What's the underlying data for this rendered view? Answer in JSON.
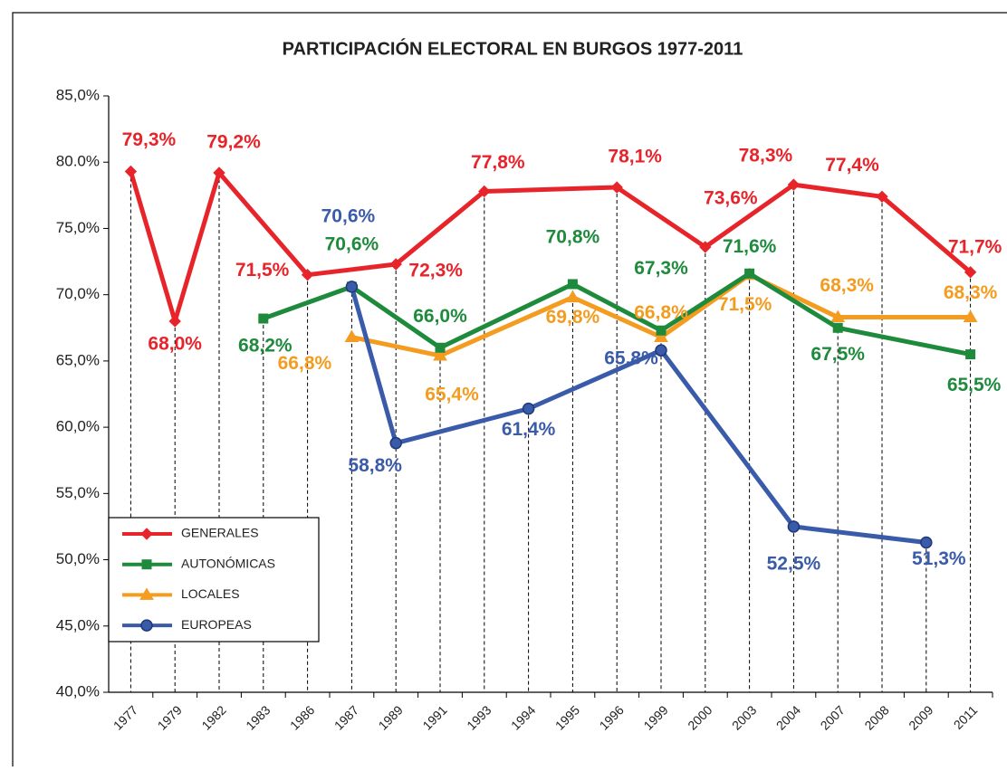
{
  "chart_data": {
    "type": "line",
    "title": "PARTICIPACIÓN ELECTORAL EN BURGOS 1977-2011",
    "categories": [
      "1977",
      "1979",
      "1982",
      "1983",
      "1986",
      "1987",
      "1989",
      "1991",
      "1993",
      "1994",
      "1995",
      "1996",
      "1999",
      "2000",
      "2003",
      "2004",
      "2007",
      "2008",
      "2009",
      "2011"
    ],
    "series": [
      {
        "name": "GENERALES",
        "color": "#e8242b",
        "marker": "diamond",
        "values": [
          79.3,
          68.0,
          79.2,
          null,
          71.5,
          null,
          72.3,
          null,
          77.8,
          null,
          null,
          78.1,
          null,
          73.6,
          null,
          78.3,
          null,
          77.4,
          null,
          71.7
        ],
        "value_labels": [
          "79,3%",
          "68,0%",
          "79,2%",
          null,
          "71,5%",
          null,
          "72,3%",
          null,
          "77,8%",
          null,
          null,
          "78,1%",
          null,
          "73,6%",
          null,
          "78,3%",
          null,
          "77,4%",
          null,
          "71,7%"
        ]
      },
      {
        "name": "AUTONÓMICAS",
        "color": "#1e8a3c",
        "marker": "square",
        "values": [
          null,
          null,
          null,
          68.2,
          null,
          70.6,
          null,
          66.0,
          null,
          null,
          70.8,
          null,
          67.3,
          null,
          71.6,
          null,
          67.5,
          null,
          null,
          65.5
        ],
        "value_labels": [
          null,
          null,
          null,
          "68,2%",
          null,
          "70,6%",
          null,
          "66,0%",
          null,
          null,
          "70,8%",
          null,
          "67,3%",
          null,
          "71,6%",
          null,
          "67,5%",
          null,
          null,
          "65,5%"
        ]
      },
      {
        "name": "LOCALES",
        "color": "#f39c1f",
        "marker": "triangle",
        "values": [
          null,
          null,
          null,
          null,
          null,
          66.8,
          null,
          65.4,
          null,
          null,
          69.8,
          null,
          66.8,
          null,
          71.5,
          null,
          68.3,
          null,
          null,
          68.3
        ],
        "value_labels": [
          null,
          null,
          null,
          null,
          null,
          "66,8%",
          null,
          "65,4%",
          null,
          null,
          "69,8%",
          null,
          "66,8%",
          null,
          "71,5%",
          null,
          "68,3%",
          null,
          null,
          "68,3%"
        ]
      },
      {
        "name": "EUROPEAS",
        "color": "#3a5ba9",
        "marker": "circle",
        "values": [
          null,
          null,
          null,
          null,
          null,
          70.6,
          58.8,
          null,
          null,
          61.4,
          null,
          null,
          65.8,
          null,
          null,
          52.5,
          null,
          null,
          51.3,
          null
        ],
        "value_labels": [
          null,
          null,
          null,
          null,
          null,
          "70,6%",
          "58,8%",
          null,
          null,
          "61,4%",
          null,
          null,
          "65,8%",
          null,
          null,
          "52,5%",
          null,
          null,
          "51,3%",
          null
        ]
      }
    ],
    "ylim": [
      40,
      85
    ],
    "yticks": [
      {
        "value": 40,
        "label": "40,0%"
      },
      {
        "value": 45,
        "label": "45,0%"
      },
      {
        "value": 50,
        "label": "50,0%"
      },
      {
        "value": 55,
        "label": "55,0%"
      },
      {
        "value": 60,
        "label": "60,0%"
      },
      {
        "value": 65,
        "label": "65,0%"
      },
      {
        "value": 70,
        "label": "70,0%"
      },
      {
        "value": 75,
        "label": "75,0%"
      },
      {
        "value": 80,
        "label": "80.0%"
      },
      {
        "value": 85,
        "label": "85,0%"
      }
    ],
    "drop_lines": true,
    "legend": "lower left"
  }
}
